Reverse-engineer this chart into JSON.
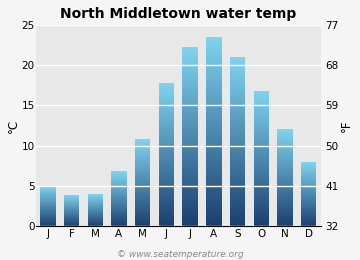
{
  "title": "North Middletown water temp",
  "months": [
    "J",
    "F",
    "M",
    "A",
    "M",
    "J",
    "J",
    "A",
    "S",
    "O",
    "N",
    "D"
  ],
  "values_c": [
    5.0,
    3.9,
    4.0,
    6.8,
    10.8,
    17.8,
    22.2,
    23.5,
    21.0,
    16.8,
    12.1,
    8.0
  ],
  "ylabel_left": "°C",
  "ylabel_right": "°F",
  "yticks_c": [
    0,
    5,
    10,
    15,
    20,
    25
  ],
  "yticks_f": [
    32,
    41,
    50,
    59,
    68,
    77
  ],
  "ylim_c": [
    0,
    25
  ],
  "bar_color_top": "#7fd4f0",
  "bar_color_bottom": "#1a3f6f",
  "plot_bg_color": "#e8e8e8",
  "fig_bg_color": "#f5f5f5",
  "grid_color": "#ffffff",
  "watermark": "© www.seatemperature.org",
  "title_fontsize": 10,
  "axis_fontsize": 7.5,
  "watermark_fontsize": 6.5,
  "bar_width": 0.65
}
